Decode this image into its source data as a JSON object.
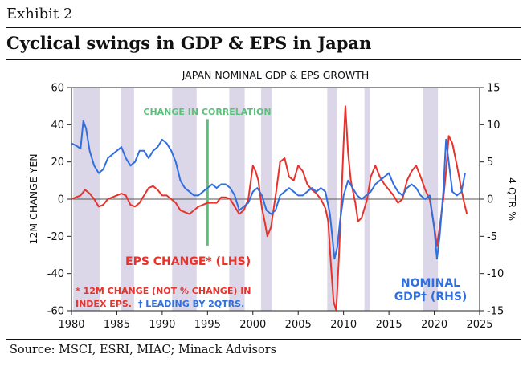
{
  "header": {
    "exhibit": "Exhibit 2",
    "title": "Cyclical swings in GDP & EPS in Japan"
  },
  "footer": {
    "source": "Source: MSCI, ESRI, MIAC; Minack Advisors"
  },
  "colors": {
    "eps": "#e8322b",
    "gdp": "#2f6fe0",
    "recession": "#dcd7e8",
    "correlation": "#5cc07a",
    "zero_line": "#555555"
  },
  "chart_data": {
    "type": "line",
    "title": "JAPAN NOMINAL GDP & EPS GROWTH",
    "xlabel": "",
    "ylabel_left": "12M CHANGE YEN",
    "ylabel_right": "4 QTR %",
    "xlim": [
      1980,
      2025
    ],
    "ylim_left": [
      -60,
      60
    ],
    "ylim_right": [
      -15,
      15
    ],
    "x_ticks": [
      1980,
      1985,
      1990,
      1995,
      2000,
      2005,
      2010,
      2015,
      2020,
      2025
    ],
    "y_ticks_left": [
      -60,
      -40,
      -20,
      0,
      20,
      40,
      60
    ],
    "y_ticks_right": [
      -15,
      -10,
      -5,
      0,
      5,
      10,
      15
    ],
    "recession_bands": [
      [
        1980.2,
        1983.1
      ],
      [
        1985.4,
        1986.9
      ],
      [
        1991.1,
        1993.8
      ],
      [
        1997.4,
        1999.1
      ],
      [
        2000.9,
        2002.1
      ],
      [
        2008.2,
        2009.3
      ],
      [
        2012.3,
        2012.9
      ],
      [
        2018.8,
        2020.4
      ]
    ],
    "annotations": {
      "correlation_label": "CHANGE IN CORRELATION",
      "correlation_year": 1995,
      "correlation_range": [
        -25,
        43
      ],
      "eps_label": "EPS CHANGE* (LHS)",
      "footnote_line1": "* 12M CHANGE (NOT % CHANGE) IN",
      "footnote_line2_red": "INDEX EPS.",
      "footnote_line2_blue": "† LEADING BY 2QTRS.",
      "gdp_label_line1": "NOMINAL",
      "gdp_label_line2": "GDP† (RHS)"
    },
    "series": [
      {
        "name": "EPS CHANGE* (LHS)",
        "axis": "left",
        "x": [
          1980.0,
          1980.5,
          1981.0,
          1981.5,
          1982.0,
          1982.5,
          1983.0,
          1983.5,
          1984.0,
          1984.5,
          1985.0,
          1985.5,
          1986.0,
          1986.5,
          1987.0,
          1987.5,
          1988.0,
          1988.5,
          1989.0,
          1989.5,
          1990.0,
          1990.5,
          1991.0,
          1991.5,
          1992.0,
          1992.5,
          1993.0,
          1993.5,
          1994.0,
          1994.5,
          1995.0,
          1995.5,
          1996.0,
          1996.5,
          1997.0,
          1997.5,
          1998.0,
          1998.5,
          1999.0,
          1999.5,
          2000.0,
          2000.3,
          2000.6,
          2001.0,
          2001.3,
          2001.6,
          2002.0,
          2002.3,
          2002.6,
          2003.0,
          2003.5,
          2004.0,
          2004.5,
          2005.0,
          2005.5,
          2006.0,
          2006.5,
          2007.0,
          2007.5,
          2008.0,
          2008.3,
          2008.6,
          2008.9,
          2009.2,
          2009.5,
          2009.8,
          2010.0,
          2010.2,
          2010.5,
          2010.8,
          2011.0,
          2011.3,
          2011.6,
          2012.0,
          2012.3,
          2012.6,
          2013.0,
          2013.5,
          2014.0,
          2014.5,
          2015.0,
          2015.5,
          2016.0,
          2016.5,
          2017.0,
          2017.5,
          2018.0,
          2018.5,
          2019.0,
          2019.5,
          2020.0,
          2020.3,
          2020.6,
          2021.0,
          2021.3,
          2021.6,
          2022.0,
          2022.5,
          2023.0,
          2023.3,
          2023.6
        ],
        "values": [
          0,
          1,
          2,
          5,
          3,
          0,
          -4,
          -3,
          0,
          1,
          2,
          3,
          2,
          -3,
          -4,
          -2,
          2,
          6,
          7,
          5,
          2,
          2,
          0,
          -2,
          -6,
          -7,
          -8,
          -6,
          -4,
          -3,
          -2,
          -2,
          -2,
          1,
          1,
          0,
          -4,
          -8,
          -6,
          0,
          18,
          15,
          10,
          -5,
          -12,
          -20,
          -15,
          -5,
          5,
          20,
          22,
          12,
          10,
          18,
          15,
          8,
          5,
          3,
          0,
          -5,
          -12,
          -35,
          -55,
          -60,
          -30,
          5,
          30,
          50,
          25,
          10,
          5,
          -2,
          -12,
          -10,
          -5,
          0,
          12,
          18,
          12,
          8,
          5,
          2,
          -2,
          0,
          10,
          15,
          18,
          12,
          5,
          0,
          -15,
          -25,
          -15,
          0,
          15,
          34,
          30,
          18,
          5,
          -2,
          -8
        ]
      },
      {
        "name": "NOMINAL GDP† (RHS)",
        "axis": "right",
        "x": [
          1980.0,
          1980.5,
          1981.0,
          1981.3,
          1981.6,
          1982.0,
          1982.5,
          1983.0,
          1983.5,
          1984.0,
          1984.5,
          1985.0,
          1985.5,
          1986.0,
          1986.5,
          1987.0,
          1987.5,
          1988.0,
          1988.5,
          1989.0,
          1989.5,
          1990.0,
          1990.5,
          1991.0,
          1991.5,
          1992.0,
          1992.5,
          1993.0,
          1993.5,
          1994.0,
          1994.5,
          1995.0,
          1995.5,
          1996.0,
          1996.5,
          1997.0,
          1997.5,
          1998.0,
          1998.5,
          1999.0,
          1999.5,
          2000.0,
          2000.5,
          2001.0,
          2001.5,
          2002.0,
          2002.5,
          2003.0,
          2003.5,
          2004.0,
          2004.5,
          2005.0,
          2005.5,
          2006.0,
          2006.5,
          2007.0,
          2007.5,
          2008.0,
          2008.5,
          2009.0,
          2009.3,
          2009.6,
          2010.0,
          2010.5,
          2011.0,
          2011.5,
          2012.0,
          2012.5,
          2013.0,
          2013.5,
          2014.0,
          2014.5,
          2015.0,
          2015.5,
          2016.0,
          2016.5,
          2017.0,
          2017.5,
          2018.0,
          2018.5,
          2019.0,
          2019.5,
          2020.0,
          2020.3,
          2020.6,
          2021.0,
          2021.3,
          2021.6,
          2022.0,
          2022.5,
          2023.0,
          2023.4
        ],
        "values": [
          7.5,
          7.2,
          6.8,
          10.5,
          9.5,
          6.5,
          4.5,
          3.5,
          4.0,
          5.5,
          6.0,
          6.5,
          7.0,
          5.5,
          4.5,
          5.0,
          6.5,
          6.5,
          5.5,
          6.5,
          7.0,
          8.0,
          7.5,
          6.5,
          5.0,
          2.5,
          1.5,
          1.0,
          0.5,
          0.5,
          1.0,
          1.5,
          2.0,
          1.5,
          2.0,
          2.0,
          1.5,
          0.5,
          -1.5,
          -1.0,
          -0.5,
          1.0,
          1.5,
          0.5,
          -1.5,
          -2.0,
          -1.5,
          0.5,
          1.0,
          1.5,
          1.0,
          0.5,
          0.5,
          1.0,
          1.5,
          1.0,
          1.5,
          1.0,
          -2.0,
          -8.0,
          -6.5,
          -3.0,
          0.5,
          2.5,
          1.5,
          0.5,
          0.0,
          0.5,
          1.0,
          2.0,
          2.5,
          3.0,
          3.5,
          2.0,
          1.0,
          0.5,
          1.5,
          2.0,
          1.5,
          0.5,
          0.0,
          0.5,
          -4.0,
          -8.0,
          -5.0,
          1.0,
          8.0,
          5.0,
          1.0,
          0.5,
          1.0,
          3.5
        ]
      }
    ]
  }
}
